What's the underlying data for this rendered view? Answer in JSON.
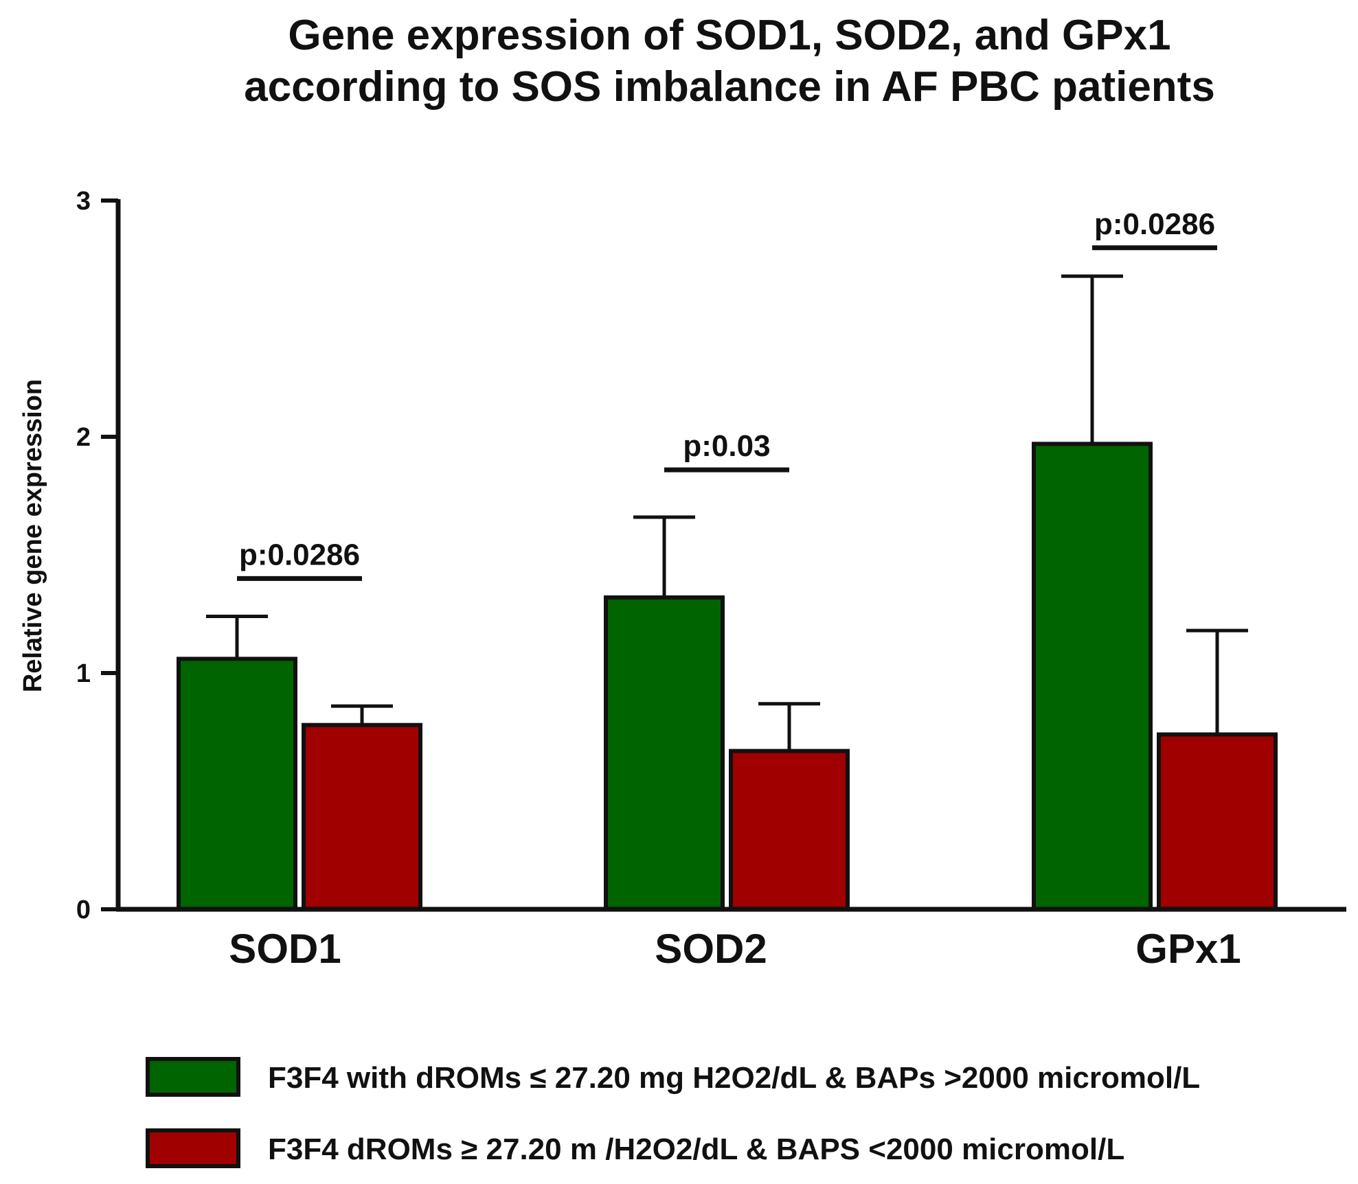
{
  "chart_data": {
    "type": "bar",
    "title_lines": [
      "Gene expression of SOD1, SOD2, and GPx1",
      "according to SOS imbalance in AF PBC patients"
    ],
    "xlabel": "",
    "ylabel": "Relative gene expression",
    "ylim": [
      0,
      3
    ],
    "yticks": [
      "0",
      "1",
      "2",
      "3"
    ],
    "categories": [
      "SOD1",
      "SOD2",
      "GPx1"
    ],
    "series": [
      {
        "name": "F3F4 with dROMs ≤ 27.20 mg H2O2/dL & BAPs >2000 micromol/L",
        "color": "#006400",
        "values": [
          1.06,
          1.32,
          1.97
        ],
        "errors": [
          0.18,
          0.34,
          0.71
        ]
      },
      {
        "name": "F3F4 dROMs ≥ 27.20 m /H2O2/dL & BAPS <2000 micromol/L",
        "color": "#a00000",
        "values": [
          0.78,
          0.67,
          0.74
        ],
        "errors": [
          0.08,
          0.2,
          0.44
        ]
      }
    ],
    "annotations": [
      {
        "text": "p:0.0286",
        "category": "SOD1",
        "y": 1.4
      },
      {
        "text": "p:0.03",
        "category": "SOD2",
        "y": 1.86
      },
      {
        "text": "p:0.0286",
        "category": "GPx1",
        "y": 2.8
      }
    ],
    "legend_position": "bottom"
  }
}
